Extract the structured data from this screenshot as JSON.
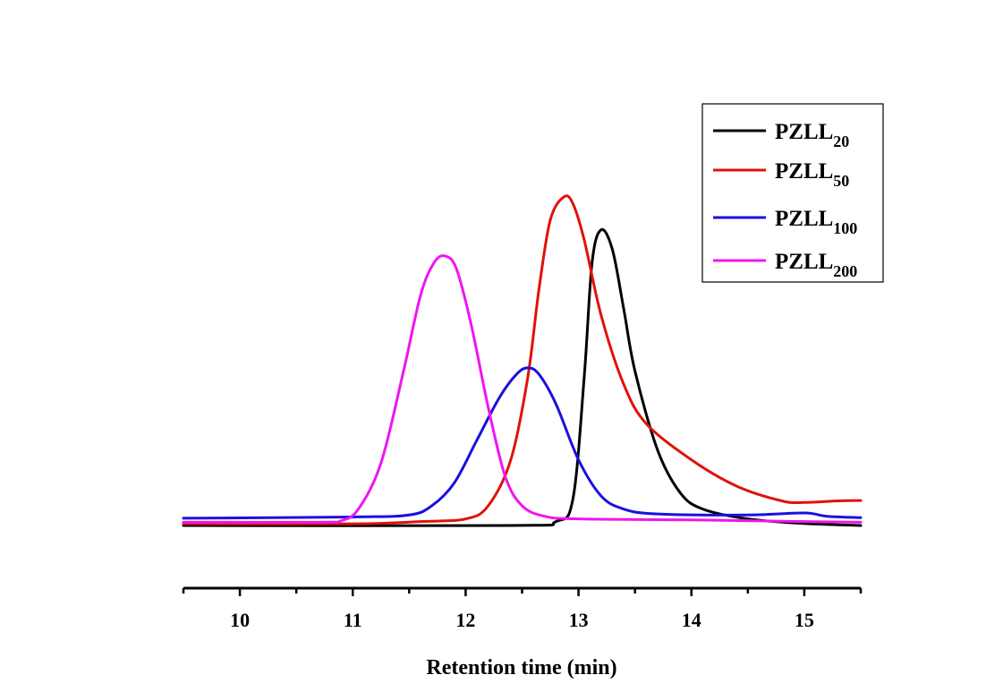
{
  "chart_data": {
    "type": "line",
    "title": "",
    "xlabel": "Retention time (min)",
    "ylabel": "",
    "xlim": [
      9.5,
      15.5
    ],
    "ylim": [
      0,
      1.05
    ],
    "x_ticks": [
      10,
      11,
      12,
      13,
      14,
      15
    ],
    "x_tick_labels": [
      "10",
      "11",
      "12",
      "13",
      "14",
      "15"
    ],
    "y_axis_visible": false,
    "grid": false,
    "legend_position": "top-right",
    "series": [
      {
        "name": "PZLL20",
        "label_main": "PZLL",
        "label_sub": "20",
        "color": "#000000",
        "points": [
          [
            9.5,
            0.0
          ],
          [
            12.4,
            0.0
          ],
          [
            12.8,
            0.012
          ],
          [
            12.95,
            0.08
          ],
          [
            13.05,
            0.45
          ],
          [
            13.12,
            0.8
          ],
          [
            13.2,
            0.9
          ],
          [
            13.3,
            0.84
          ],
          [
            13.4,
            0.66
          ],
          [
            13.5,
            0.47
          ],
          [
            13.7,
            0.23
          ],
          [
            13.9,
            0.1
          ],
          [
            14.1,
            0.05
          ],
          [
            14.5,
            0.02
          ],
          [
            15.0,
            0.006
          ],
          [
            15.5,
            0.0
          ]
        ]
      },
      {
        "name": "PZLL50",
        "label_main": "PZLL",
        "label_sub": "50",
        "color": "#e0120b",
        "points": [
          [
            9.5,
            0.005
          ],
          [
            11.0,
            0.005
          ],
          [
            11.6,
            0.012
          ],
          [
            12.0,
            0.02
          ],
          [
            12.2,
            0.06
          ],
          [
            12.4,
            0.2
          ],
          [
            12.55,
            0.45
          ],
          [
            12.65,
            0.72
          ],
          [
            12.75,
            0.93
          ],
          [
            12.87,
            1.0
          ],
          [
            12.95,
            0.98
          ],
          [
            13.05,
            0.87
          ],
          [
            13.2,
            0.64
          ],
          [
            13.4,
            0.43
          ],
          [
            13.6,
            0.31
          ],
          [
            14.0,
            0.2
          ],
          [
            14.4,
            0.12
          ],
          [
            14.8,
            0.075
          ],
          [
            15.0,
            0.07
          ],
          [
            15.3,
            0.075
          ],
          [
            15.5,
            0.076
          ]
        ]
      },
      {
        "name": "PZLL100",
        "label_main": "PZLL",
        "label_sub": "100",
        "color": "#1a10e0",
        "points": [
          [
            9.5,
            0.022
          ],
          [
            11.0,
            0.026
          ],
          [
            11.5,
            0.032
          ],
          [
            11.7,
            0.06
          ],
          [
            11.9,
            0.13
          ],
          [
            12.1,
            0.26
          ],
          [
            12.3,
            0.39
          ],
          [
            12.45,
            0.46
          ],
          [
            12.55,
            0.48
          ],
          [
            12.65,
            0.46
          ],
          [
            12.8,
            0.37
          ],
          [
            13.0,
            0.2
          ],
          [
            13.2,
            0.09
          ],
          [
            13.4,
            0.05
          ],
          [
            13.7,
            0.035
          ],
          [
            14.5,
            0.032
          ],
          [
            15.0,
            0.038
          ],
          [
            15.2,
            0.028
          ],
          [
            15.5,
            0.024
          ]
        ]
      },
      {
        "name": "PZLL200",
        "label_main": "PZLL",
        "label_sub": "200",
        "color": "#f015f0",
        "points": [
          [
            9.5,
            0.01
          ],
          [
            10.7,
            0.01
          ],
          [
            10.9,
            0.015
          ],
          [
            11.05,
            0.05
          ],
          [
            11.25,
            0.19
          ],
          [
            11.45,
            0.47
          ],
          [
            11.6,
            0.7
          ],
          [
            11.72,
            0.8
          ],
          [
            11.82,
            0.82
          ],
          [
            11.92,
            0.78
          ],
          [
            12.05,
            0.61
          ],
          [
            12.2,
            0.36
          ],
          [
            12.35,
            0.15
          ],
          [
            12.5,
            0.06
          ],
          [
            12.7,
            0.028
          ],
          [
            13.0,
            0.02
          ],
          [
            14.0,
            0.017
          ],
          [
            15.0,
            0.012
          ],
          [
            15.5,
            0.01
          ]
        ]
      }
    ]
  }
}
